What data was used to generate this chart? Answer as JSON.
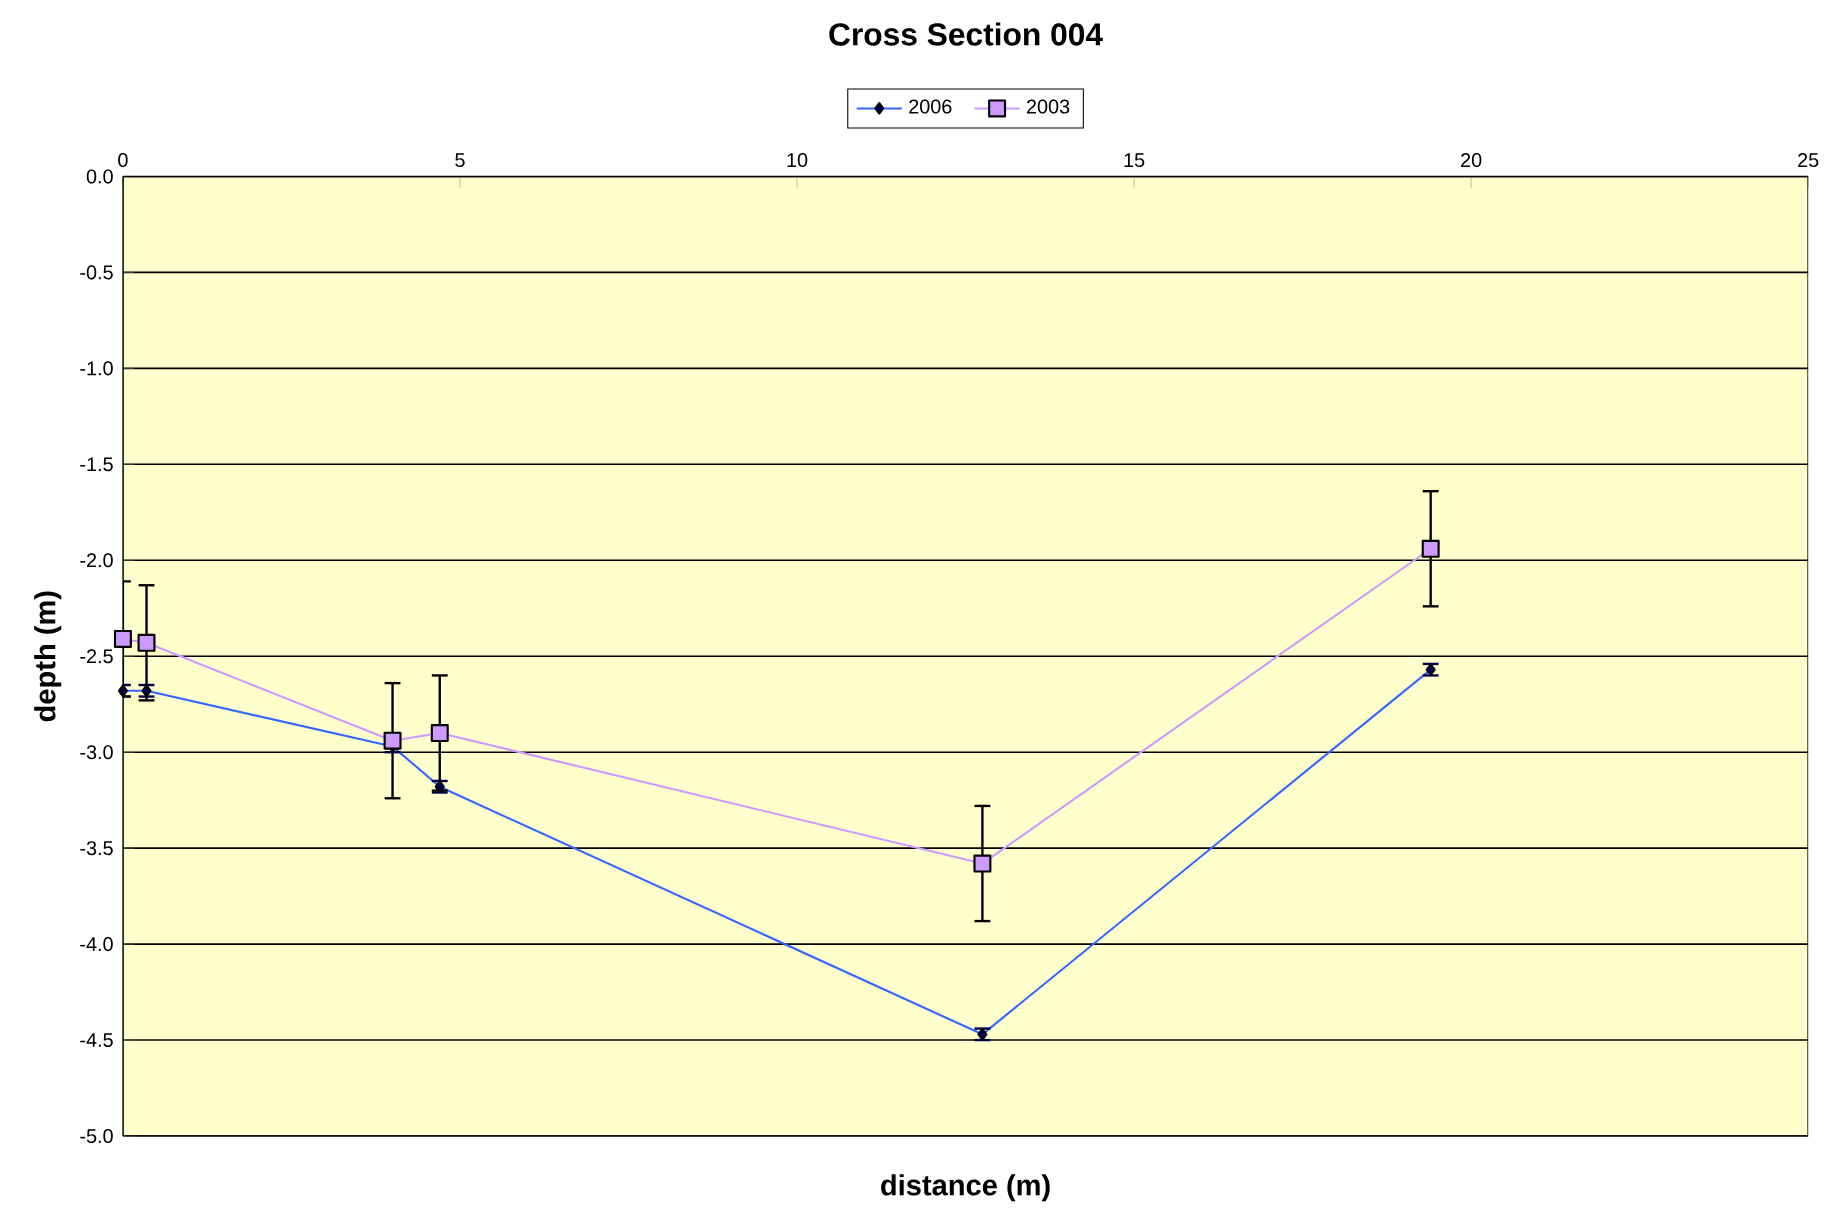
{
  "chart_data": {
    "type": "line",
    "title": "Cross Section 004",
    "xlabel": "distance (m)",
    "ylabel": "depth (m)",
    "xlim": [
      0,
      25
    ],
    "xticks": [
      0,
      5,
      10,
      15,
      20,
      25
    ],
    "ylim": [
      -5,
      0
    ],
    "yticks": [
      {
        "value": -5,
        "label": "-5.0"
      },
      {
        "value": -4.5,
        "label": "-4.5"
      },
      {
        "value": -4,
        "label": "-4.0"
      },
      {
        "value": -3.5,
        "label": "-3.5"
      },
      {
        "value": -3,
        "label": "-3.0"
      },
      {
        "value": -2.5,
        "label": "-2.5"
      },
      {
        "value": -2,
        "label": "-2.0"
      },
      {
        "value": -1.5,
        "label": "-1.5"
      },
      {
        "value": -1,
        "label": "-1.0"
      },
      {
        "value": -0.5,
        "label": "-0.5"
      },
      {
        "value": 0,
        "label": "0.0"
      }
    ],
    "grid": "y",
    "legend": "top",
    "series": [
      {
        "name": "2006",
        "color": "#3366ff",
        "marker": "diamond",
        "x": [
          0,
          0.35,
          4.0,
          4.7,
          12.75,
          19.4
        ],
        "values": [
          -2.68,
          -2.68,
          -2.97,
          -3.18,
          -4.47,
          -2.57
        ],
        "errors": [
          0.03,
          0.03,
          0.03,
          0.03,
          0.03,
          0.03
        ]
      },
      {
        "name": "2003",
        "color": "#cc99ff",
        "marker": "square",
        "x": [
          0,
          0.35,
          4.0,
          4.7,
          12.75,
          19.4
        ],
        "values": [
          -2.41,
          -2.43,
          -2.94,
          -2.9,
          -3.58,
          -1.94
        ],
        "errors": [
          0.3,
          0.3,
          0.3,
          0.3,
          0.3,
          0.3
        ]
      }
    ]
  }
}
